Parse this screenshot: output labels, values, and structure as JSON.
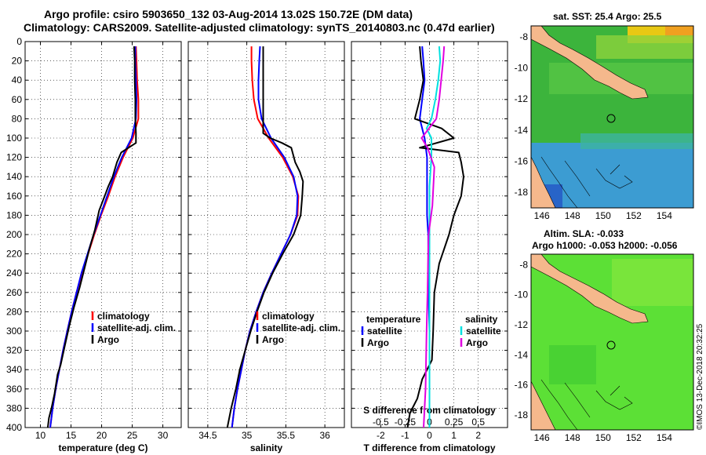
{
  "header": {
    "line1": "Argo profile: csiro 5903650_132 03-Aug-2014 13.02S 150.72E (DM data)",
    "line2": "Climatology: CARS2009. Satellite-adjusted climatology: synTS_20140803.nc (0.47d earlier)"
  },
  "maps": {
    "sst_title": "sat. SST: 25.4 Argo: 25.5",
    "sla_title1": "Altim. SLA: -0.033",
    "sla_title2": "Argo h1000: -0.053 h2000: -0.056",
    "lon_ticks": [
      "146",
      "148",
      "150",
      "152",
      "154"
    ],
    "lat_ticks": [
      "-8",
      "-10",
      "-12",
      "-14",
      "-16",
      "-18"
    ],
    "argo_position": {
      "lat": -13.02,
      "lon": 150.72
    },
    "lon_range": [
      145.3,
      155.9
    ],
    "lat_range": [
      -19.0,
      -7.3
    ]
  },
  "stamp": "©IMOS 13-Dec-2018 20:32:25",
  "colors": {
    "climatology": "#ff0000",
    "satellite": "#0000ff",
    "argo": "#000000",
    "salinity_satellite": "#00e0e0",
    "salinity_argo": "#e000e0",
    "land": "#f5b88c",
    "sea_sst": "#3cb43c",
    "sea_sla": "#5ce036"
  },
  "chart_data": [
    {
      "type": "line",
      "xlabel": "temperature (deg C)",
      "ylabel": "",
      "xlim": [
        7.5,
        33
      ],
      "ylim": [
        400,
        0
      ],
      "xticks": [
        "10",
        "15",
        "20",
        "25",
        "30"
      ],
      "yticks": [
        "0",
        "20",
        "40",
        "60",
        "80",
        "100",
        "120",
        "140",
        "160",
        "180",
        "200",
        "220",
        "240",
        "260",
        "280",
        "300",
        "320",
        "340",
        "360",
        "380",
        "400"
      ],
      "legend": [
        "climatology",
        "satellite-adj. clim.",
        "Argo"
      ],
      "series": [
        {
          "name": "climatology",
          "points": [
            [
              25.6,
              5
            ],
            [
              25.7,
              20
            ],
            [
              25.8,
              40
            ],
            [
              26.0,
              60
            ],
            [
              26.0,
              80
            ],
            [
              25.1,
              100
            ],
            [
              23.5,
              120
            ],
            [
              22.2,
              140
            ],
            [
              21.1,
              160
            ],
            [
              19.9,
              180
            ],
            [
              18.8,
              200
            ],
            [
              17.8,
              220
            ],
            [
              16.8,
              240
            ],
            [
              15.9,
              260
            ],
            [
              15.1,
              280
            ],
            [
              14.4,
              300
            ],
            [
              13.7,
              320
            ],
            [
              13.1,
              340
            ],
            [
              12.5,
              360
            ],
            [
              12.0,
              380
            ],
            [
              11.6,
              400
            ]
          ]
        },
        {
          "name": "satellite-adj. clim.",
          "points": [
            [
              25.5,
              5
            ],
            [
              25.5,
              20
            ],
            [
              25.6,
              40
            ],
            [
              25.7,
              60
            ],
            [
              25.6,
              80
            ],
            [
              24.9,
              100
            ],
            [
              23.3,
              120
            ],
            [
              22.0,
              140
            ],
            [
              20.9,
              160
            ],
            [
              19.8,
              180
            ],
            [
              18.7,
              200
            ],
            [
              17.7,
              220
            ],
            [
              16.7,
              240
            ],
            [
              15.9,
              260
            ],
            [
              15.1,
              280
            ],
            [
              14.4,
              300
            ],
            [
              13.7,
              320
            ],
            [
              13.1,
              340
            ],
            [
              12.5,
              360
            ],
            [
              12.0,
              380
            ],
            [
              11.6,
              400
            ]
          ]
        },
        {
          "name": "Argo",
          "points": [
            [
              25.3,
              5
            ],
            [
              25.4,
              20
            ],
            [
              25.4,
              40
            ],
            [
              25.5,
              60
            ],
            [
              25.5,
              80
            ],
            [
              25.6,
              95
            ],
            [
              25.6,
              105
            ],
            [
              23.2,
              115
            ],
            [
              22.5,
              125
            ],
            [
              21.8,
              140
            ],
            [
              21.1,
              150
            ],
            [
              20.5,
              160
            ],
            [
              19.6,
              175
            ],
            [
              18.9,
              195
            ],
            [
              18.0,
              215
            ],
            [
              17.2,
              235
            ],
            [
              16.4,
              255
            ],
            [
              15.5,
              275
            ],
            [
              14.7,
              295
            ],
            [
              14.0,
              315
            ],
            [
              13.3,
              335
            ],
            [
              12.8,
              345
            ],
            [
              12.3,
              365
            ],
            [
              11.8,
              380
            ],
            [
              11.4,
              390
            ],
            [
              11.2,
              400
            ]
          ]
        }
      ]
    },
    {
      "type": "line",
      "xlabel": "salinity",
      "ylabel": "",
      "xlim": [
        34.25,
        36.25
      ],
      "ylim": [
        400,
        0
      ],
      "xticks": [
        "34.5",
        "35",
        "35.5",
        "36"
      ],
      "legend": [
        "climatology",
        "satellite-adj. clim.",
        "Argo"
      ],
      "series": [
        {
          "name": "climatology",
          "points": [
            [
              35.06,
              5
            ],
            [
              35.06,
              20
            ],
            [
              35.07,
              40
            ],
            [
              35.09,
              60
            ],
            [
              35.14,
              80
            ],
            [
              35.28,
              100
            ],
            [
              35.46,
              120
            ],
            [
              35.59,
              140
            ],
            [
              35.66,
              160
            ],
            [
              35.65,
              180
            ],
            [
              35.56,
              200
            ],
            [
              35.44,
              220
            ],
            [
              35.32,
              240
            ],
            [
              35.21,
              260
            ],
            [
              35.12,
              280
            ],
            [
              35.04,
              300
            ],
            [
              34.98,
              320
            ],
            [
              34.93,
              340
            ],
            [
              34.88,
              360
            ],
            [
              34.84,
              380
            ],
            [
              34.81,
              400
            ]
          ]
        },
        {
          "name": "satellite-adj. clim.",
          "points": [
            [
              35.17,
              5
            ],
            [
              35.16,
              20
            ],
            [
              35.15,
              40
            ],
            [
              35.15,
              60
            ],
            [
              35.19,
              80
            ],
            [
              35.31,
              100
            ],
            [
              35.48,
              120
            ],
            [
              35.6,
              140
            ],
            [
              35.65,
              160
            ],
            [
              35.64,
              180
            ],
            [
              35.56,
              200
            ],
            [
              35.44,
              220
            ],
            [
              35.32,
              240
            ],
            [
              35.21,
              260
            ],
            [
              35.12,
              280
            ],
            [
              35.04,
              300
            ],
            [
              34.98,
              320
            ],
            [
              34.93,
              340
            ],
            [
              34.88,
              360
            ],
            [
              34.84,
              380
            ],
            [
              34.81,
              400
            ]
          ]
        },
        {
          "name": "Argo",
          "points": [
            [
              35.21,
              5
            ],
            [
              35.21,
              20
            ],
            [
              35.21,
              40
            ],
            [
              35.21,
              60
            ],
            [
              35.21,
              80
            ],
            [
              35.21,
              95
            ],
            [
              35.3,
              100
            ],
            [
              35.45,
              105
            ],
            [
              35.57,
              110
            ],
            [
              35.62,
              125
            ],
            [
              35.68,
              135
            ],
            [
              35.72,
              145
            ],
            [
              35.71,
              160
            ],
            [
              35.69,
              180
            ],
            [
              35.6,
              200
            ],
            [
              35.46,
              220
            ],
            [
              35.33,
              240
            ],
            [
              35.22,
              260
            ],
            [
              35.13,
              280
            ],
            [
              35.05,
              300
            ],
            [
              34.98,
              320
            ],
            [
              34.91,
              340
            ],
            [
              34.86,
              360
            ],
            [
              34.8,
              380
            ],
            [
              34.75,
              400
            ]
          ]
        }
      ]
    },
    {
      "type": "line",
      "xlabel": "T difference from climatology",
      "ylabel": "",
      "xlim": [
        -3.2,
        3.2
      ],
      "ylim": [
        400,
        0
      ],
      "xticks": [
        "-2",
        "-1",
        "0",
        "1",
        "2"
      ],
      "s_label": "S difference from climatology",
      "s_xlim": [
        -0.8,
        0.8
      ],
      "s_xticks": [
        "-0.5",
        "-0.25",
        "0",
        "0.25",
        "0.5"
      ],
      "legend_groups": {
        "temperature": "temperature",
        "salinity": "salinity"
      },
      "legend_temperature": [
        "satellite",
        "Argo"
      ],
      "legend_salinity": [
        "satellite",
        "Argo"
      ],
      "series": [
        {
          "name": "temperature satellite",
          "points": [
            [
              -0.3,
              5
            ],
            [
              -0.25,
              20
            ],
            [
              -0.2,
              40
            ],
            [
              -0.3,
              60
            ],
            [
              -0.4,
              80
            ],
            [
              -0.2,
              100
            ],
            [
              -0.1,
              120
            ],
            [
              -0.1,
              140
            ],
            [
              -0.1,
              160
            ],
            [
              -0.1,
              180
            ],
            [
              -0.05,
              200
            ],
            [
              -0.05,
              250
            ],
            [
              0.0,
              300
            ],
            [
              0.0,
              400
            ]
          ]
        },
        {
          "name": "temperature Argo",
          "points": [
            [
              -0.4,
              5
            ],
            [
              -0.35,
              20
            ],
            [
              -0.25,
              40
            ],
            [
              -0.4,
              60
            ],
            [
              -0.6,
              80
            ],
            [
              0.5,
              90
            ],
            [
              1.0,
              100
            ],
            [
              -0.4,
              110
            ],
            [
              1.2,
              115
            ],
            [
              1.3,
              125
            ],
            [
              1.4,
              140
            ],
            [
              1.3,
              160
            ],
            [
              1.0,
              180
            ],
            [
              0.8,
              200
            ],
            [
              0.4,
              230
            ],
            [
              0.2,
              260
            ],
            [
              0.15,
              300
            ],
            [
              0.1,
              330
            ],
            [
              -0.3,
              350
            ],
            [
              -0.5,
              370
            ],
            [
              -0.8,
              385
            ],
            [
              -0.9,
              400
            ]
          ]
        },
        {
          "name": "salinity satellite",
          "points": [
            [
              0.1,
              5
            ],
            [
              0.11,
              20
            ],
            [
              0.09,
              40
            ],
            [
              0.06,
              60
            ],
            [
              0.02,
              80
            ],
            [
              -0.03,
              90
            ],
            [
              0.02,
              100
            ],
            [
              0.02,
              120
            ],
            [
              0.0,
              150
            ],
            [
              0.0,
              200
            ],
            [
              0.0,
              400
            ]
          ]
        },
        {
          "name": "salinity Argo",
          "points": [
            [
              0.15,
              5
            ],
            [
              0.14,
              20
            ],
            [
              0.12,
              40
            ],
            [
              0.1,
              60
            ],
            [
              0.07,
              80
            ],
            [
              -0.08,
              100
            ],
            [
              -0.02,
              110
            ],
            [
              0.05,
              130
            ],
            [
              0.03,
              170
            ],
            [
              -0.01,
              200
            ],
            [
              -0.02,
              260
            ],
            [
              -0.03,
              300
            ],
            [
              -0.04,
              360
            ],
            [
              -0.06,
              400
            ]
          ]
        }
      ]
    }
  ]
}
